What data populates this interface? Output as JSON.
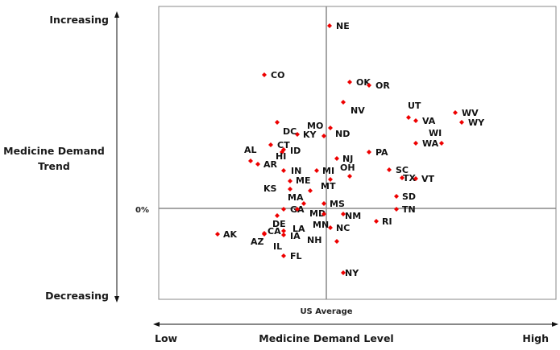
{
  "chart_data": {
    "type": "scatter",
    "title": "",
    "xlabel": "Medicine Demand Level",
    "ylabel": "Medicine Demand Trend",
    "x_low_label": "Low",
    "x_high_label": "High",
    "x_center_label": "US Average",
    "y_top_label": "Increasing",
    "y_bottom_label": "Decreasing",
    "y_center_label": "0%",
    "xlim": [
      -83.2,
      114
    ],
    "ylim": [
      -45.2,
      100.4
    ],
    "grid": false,
    "point_color": "#ee0000",
    "points": [
      {
        "label": "NE",
        "x": 1.6,
        "y": 90.8
      },
      {
        "label": "CO",
        "x": -30.8,
        "y": 66.4
      },
      {
        "label": "OK",
        "x": 11.6,
        "y": 62.8
      },
      {
        "label": "OR",
        "x": 21.2,
        "y": 61.2
      },
      {
        "label": "NV",
        "x": 8.4,
        "y": 52.8
      },
      {
        "label": "UT",
        "x": 40.8,
        "y": 45.2
      },
      {
        "label": "VA",
        "x": 44.4,
        "y": 43.6
      },
      {
        "label": "WV",
        "x": 64,
        "y": 47.6
      },
      {
        "label": "WY",
        "x": 67.2,
        "y": 42.8
      },
      {
        "label": "WI",
        "x": 57.2,
        "y": 32.4
      },
      {
        "label": "WA",
        "x": 44.4,
        "y": 32.4
      },
      {
        "label": "MO",
        "x": -24.4,
        "y": 42.8
      },
      {
        "label": "DC",
        "x": -14.4,
        "y": 36.8
      },
      {
        "label": "KY",
        "x": -1.2,
        "y": 36
      },
      {
        "label": "ND",
        "x": 2,
        "y": 40
      },
      {
        "label": "CT",
        "x": -27.6,
        "y": 31.6
      },
      {
        "label": "ID",
        "x": -21.2,
        "y": 29.2
      },
      {
        "label": "HI",
        "x": -22,
        "y": 28
      },
      {
        "label": "AL",
        "x": -37.6,
        "y": 23.6
      },
      {
        "label": "AR",
        "x": -34,
        "y": 22
      },
      {
        "label": "PA",
        "x": 21.2,
        "y": 28
      },
      {
        "label": "NJ",
        "x": 5.2,
        "y": 24.8
      },
      {
        "label": "OH",
        "x": 11.6,
        "y": 16
      },
      {
        "label": "IN",
        "x": -21.2,
        "y": 18.8
      },
      {
        "label": "MI",
        "x": -4.8,
        "y": 18.8
      },
      {
        "label": "SC",
        "x": 31.2,
        "y": 19.2
      },
      {
        "label": "TX",
        "x": 37.6,
        "y": 15.2
      },
      {
        "label": "VT",
        "x": 44.4,
        "y": 14.8
      },
      {
        "label": "ME",
        "x": -18,
        "y": 13.6
      },
      {
        "label": "MT",
        "x": 2,
        "y": 14.4
      },
      {
        "label": "KS",
        "x": -18,
        "y": 9.6
      },
      {
        "label": "MA",
        "x": -8,
        "y": 8.8
      },
      {
        "label": "MD",
        "x": -11.2,
        "y": 2.4
      },
      {
        "label": "GA",
        "x": -21.2,
        "y": -0.4
      },
      {
        "label": "DE",
        "x": -14.4,
        "y": -0.4
      },
      {
        "label": "LA",
        "x": -24.4,
        "y": -3.6
      },
      {
        "label": "MS",
        "x": -1.2,
        "y": 2.4
      },
      {
        "label": "NM",
        "x": 8.4,
        "y": -2.8
      },
      {
        "label": "MN",
        "x": -1.2,
        "y": -2.8
      },
      {
        "label": "RI",
        "x": 24.8,
        "y": -6.4
      },
      {
        "label": "NC",
        "x": 2,
        "y": -9.6
      },
      {
        "label": "CA",
        "x": -30.8,
        "y": -12.4
      },
      {
        "label": "AZ",
        "x": -30.8,
        "y": -12.8
      },
      {
        "label": "AK",
        "x": -54,
        "y": -12.8
      },
      {
        "label": "IA",
        "x": -21.2,
        "y": -13.2
      },
      {
        "label": "IL",
        "x": -21.2,
        "y": -11.2
      },
      {
        "label": "NH",
        "x": 5.2,
        "y": -16.4
      },
      {
        "label": "FL",
        "x": -21.2,
        "y": -23.6
      },
      {
        "label": "NY",
        "x": 8.4,
        "y": -32
      },
      {
        "label": "TN",
        "x": 34.8,
        "y": -0.4
      },
      {
        "label": "SD",
        "x": 34.8,
        "y": 6
      }
    ]
  }
}
